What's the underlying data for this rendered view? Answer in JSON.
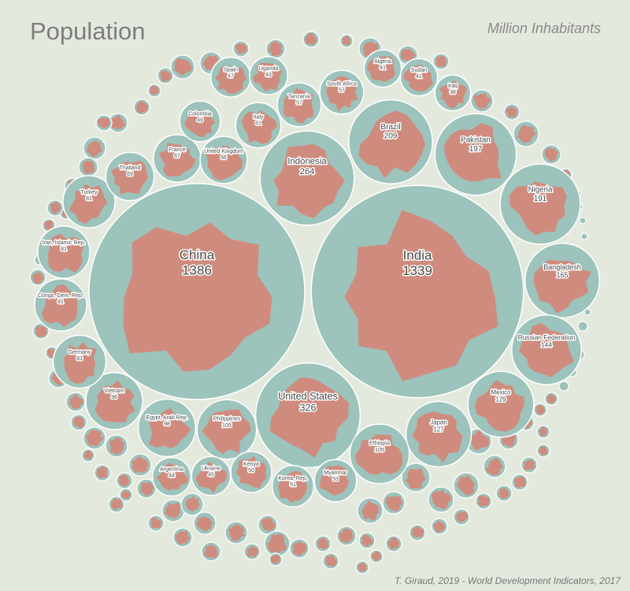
{
  "title": "Population",
  "unit_label": "Million Inhabitants",
  "credit": "T. Giraud, 2019 - World Development Indicators, 2017",
  "colors": {
    "background": "#e4e9de",
    "bubble": "#9cc3bc",
    "shape": "#cf8c7e",
    "text": "#4a4a4a"
  },
  "chart_data": {
    "type": "bubble",
    "series": [
      {
        "name": "",
        "points": [
          {
            "label": "China",
            "value": 1386
          },
          {
            "label": "India",
            "value": 1339
          },
          {
            "label": "United States",
            "value": 326
          },
          {
            "label": "Indonesia",
            "value": 264
          },
          {
            "label": "Brazil",
            "value": 209
          },
          {
            "label": "Pakistan",
            "value": 197
          },
          {
            "label": "Nigeria",
            "value": 191
          },
          {
            "label": "Bangladesh",
            "value": 165
          },
          {
            "label": "Russian Federation",
            "value": 144
          },
          {
            "label": "Mexico",
            "value": 129
          },
          {
            "label": "Japan",
            "value": 127
          },
          {
            "label": "Ethiopia",
            "value": 105
          },
          {
            "label": "Philippines",
            "value": 105
          },
          {
            "label": "Egypt, Arab Rep.",
            "value": 98
          },
          {
            "label": "Vietnam",
            "value": 96
          },
          {
            "label": "Germany",
            "value": 83
          },
          {
            "label": "Congo, Dem. Rep.",
            "value": 81
          },
          {
            "label": "Iran, Islamic Rep.",
            "value": 81
          },
          {
            "label": "Turkey",
            "value": 81
          },
          {
            "label": "Thailand",
            "value": 69
          },
          {
            "label": "France",
            "value": 67
          },
          {
            "label": "United Kingdom",
            "value": 66
          },
          {
            "label": "Italy",
            "value": 61
          },
          {
            "label": "Tanzania",
            "value": 57
          },
          {
            "label": "South Africa",
            "value": 57
          },
          {
            "label": "Myanmar",
            "value": 53
          },
          {
            "label": "Korea, Rep.",
            "value": 51
          },
          {
            "label": "Kenya",
            "value": 50
          },
          {
            "label": "Colombia",
            "value": 49
          },
          {
            "label": "Spain",
            "value": 47
          },
          {
            "label": "Ukraine",
            "value": 45
          },
          {
            "label": "Argentina",
            "value": 44
          },
          {
            "label": "Uganda",
            "value": 43
          },
          {
            "label": "Algeria",
            "value": 41
          },
          {
            "label": "Sudan",
            "value": 41
          },
          {
            "label": "Iraq",
            "value": 38
          }
        ]
      }
    ]
  }
}
